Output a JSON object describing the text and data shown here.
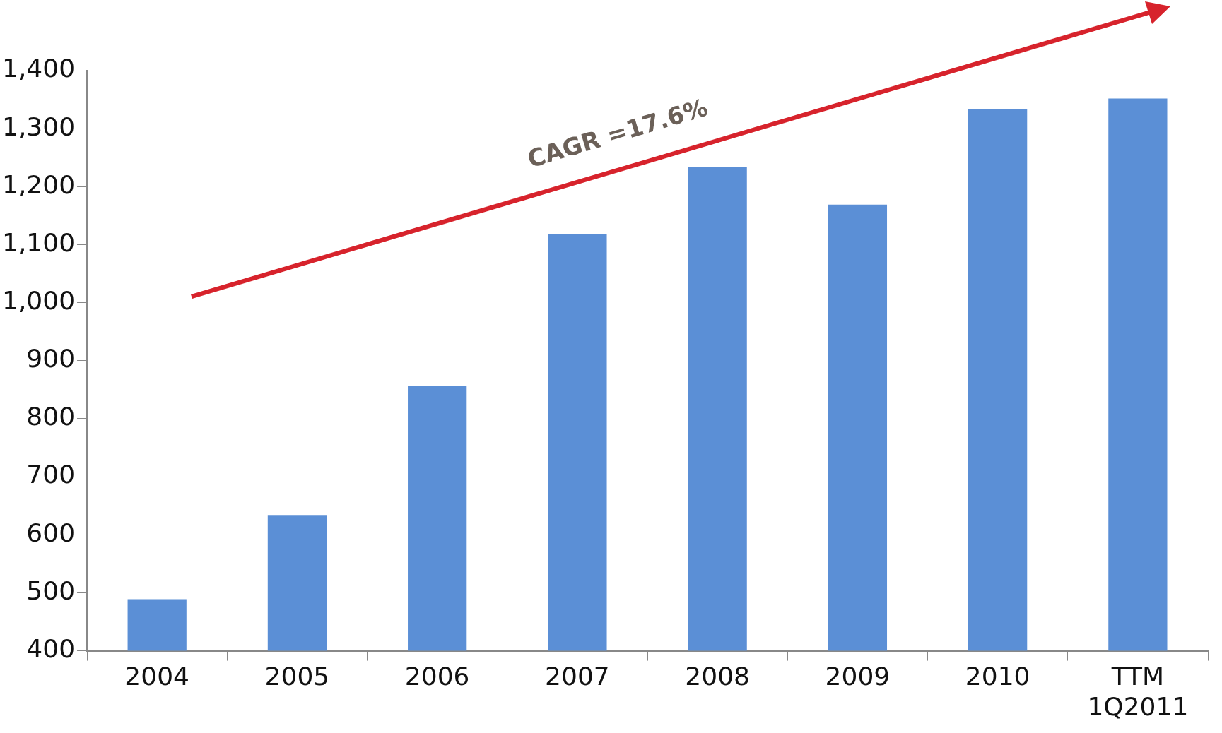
{
  "chart_data": {
    "type": "bar",
    "categories": [
      "2004",
      "2005",
      "2006",
      "2007",
      "2008",
      "2009",
      "2010",
      "TTM\n1Q2011"
    ],
    "values": [
      489,
      634,
      856,
      1118,
      1234,
      1169,
      1333,
      1352
    ],
    "color": "#5b8fd6",
    "ylim": [
      400,
      1400
    ],
    "yticks": [
      400,
      500,
      600,
      700,
      800,
      900,
      {
        "value": 1000,
        "label": "1,000"
      },
      {
        "value": 1100,
        "label": "1,100"
      },
      {
        "value": 1200,
        "label": "1,200"
      },
      {
        "value": 1300,
        "label": "1,300"
      },
      {
        "value": 1400,
        "label": "1,400"
      }
    ],
    "grid": false,
    "legend": false,
    "annotations": [
      "CAGR =17.6%"
    ]
  }
}
